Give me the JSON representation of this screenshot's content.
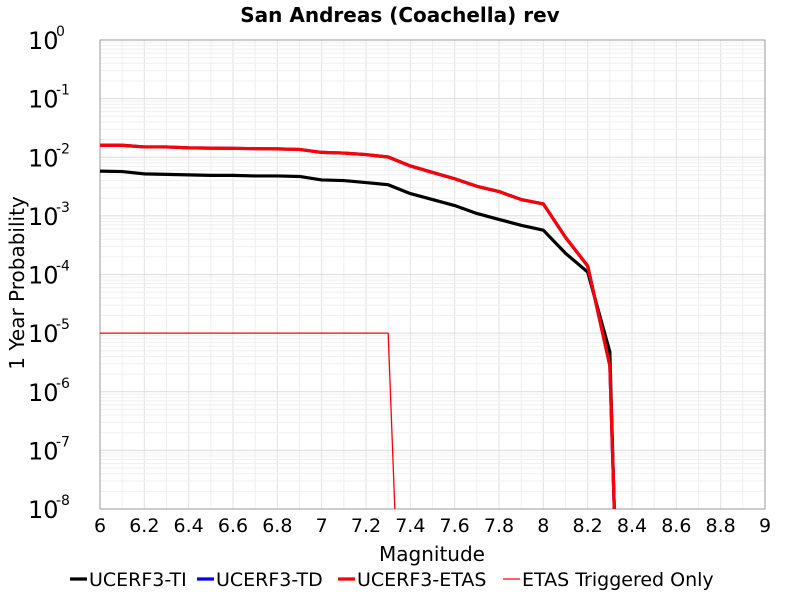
{
  "chart_data": {
    "type": "line",
    "title": "San Andreas (Coachella) rev",
    "xlabel": "Magnitude",
    "ylabel": "1 Year Probability",
    "xlim": [
      6,
      9
    ],
    "ylim": [
      1e-08,
      1
    ],
    "yscale": "log",
    "grid": true,
    "legend_position": "bottom",
    "x_ticks": [
      "6",
      "6.2",
      "6.4",
      "6.6",
      "6.8",
      "7",
      "7.2",
      "7.4",
      "7.6",
      "7.8",
      "8",
      "8.2",
      "8.4",
      "8.6",
      "8.8",
      "9"
    ],
    "y_ticks": [
      {
        "base": "10",
        "exp": "0"
      },
      {
        "base": "10",
        "exp": "-1"
      },
      {
        "base": "10",
        "exp": "-2"
      },
      {
        "base": "10",
        "exp": "-3"
      },
      {
        "base": "10",
        "exp": "-4"
      },
      {
        "base": "10",
        "exp": "-5"
      },
      {
        "base": "10",
        "exp": "-6"
      },
      {
        "base": "10",
        "exp": "-7"
      },
      {
        "base": "10",
        "exp": "-8"
      }
    ],
    "series": [
      {
        "name": "UCERF3-TI",
        "color": "#000000",
        "style": "thick",
        "x": [
          6.0,
          6.1,
          6.2,
          6.3,
          6.4,
          6.5,
          6.6,
          6.7,
          6.8,
          6.9,
          7.0,
          7.1,
          7.2,
          7.3,
          7.4,
          7.5,
          7.6,
          7.7,
          7.8,
          7.9,
          8.0,
          8.1,
          8.2,
          8.3,
          8.32
        ],
        "y": [
          0.0058,
          0.0057,
          0.0052,
          0.0051,
          0.005,
          0.0049,
          0.0049,
          0.0048,
          0.0048,
          0.0047,
          0.0041,
          0.004,
          0.0037,
          0.0034,
          0.0024,
          0.0019,
          0.0015,
          0.0011,
          0.00087,
          0.00069,
          0.00057,
          0.00023,
          0.00011,
          4.8e-06,
          1e-08
        ]
      },
      {
        "name": "UCERF3-TD",
        "color": "#0000ff",
        "style": "thick",
        "x": [
          6.0,
          6.1,
          6.2,
          6.3,
          6.4,
          6.5,
          6.6,
          6.7,
          6.8,
          6.9,
          7.0,
          7.1,
          7.2,
          7.3,
          7.4,
          7.5,
          7.6,
          7.7,
          7.8,
          7.9,
          8.0,
          8.1,
          8.2,
          8.3,
          8.32
        ],
        "y": [
          0.016,
          0.016,
          0.015,
          0.015,
          0.0145,
          0.0143,
          0.0142,
          0.014,
          0.0139,
          0.0136,
          0.0121,
          0.0118,
          0.0111,
          0.0101,
          0.0071,
          0.0055,
          0.0043,
          0.0032,
          0.0026,
          0.0019,
          0.0016,
          0.00043,
          0.00014,
          2.8e-06,
          1e-08
        ]
      },
      {
        "name": "UCERF3-ETAS",
        "color": "#ff0000",
        "style": "thick",
        "x": [
          6.0,
          6.1,
          6.2,
          6.3,
          6.4,
          6.5,
          6.6,
          6.7,
          6.8,
          6.9,
          7.0,
          7.1,
          7.2,
          7.3,
          7.4,
          7.5,
          7.6,
          7.7,
          7.8,
          7.9,
          8.0,
          8.1,
          8.2,
          8.3,
          8.32
        ],
        "y": [
          0.016,
          0.016,
          0.015,
          0.015,
          0.0145,
          0.0143,
          0.0142,
          0.014,
          0.0139,
          0.0136,
          0.0121,
          0.0118,
          0.0111,
          0.0101,
          0.0071,
          0.0055,
          0.0043,
          0.0032,
          0.0026,
          0.0019,
          0.0016,
          0.00043,
          0.00014,
          2.8e-06,
          1e-08
        ]
      },
      {
        "name": "ETAS Triggered Only",
        "color": "#ff0000",
        "style": "thin",
        "x": [
          6.0,
          7.3,
          7.33
        ],
        "y": [
          1e-05,
          1e-05,
          1e-08
        ]
      }
    ]
  }
}
